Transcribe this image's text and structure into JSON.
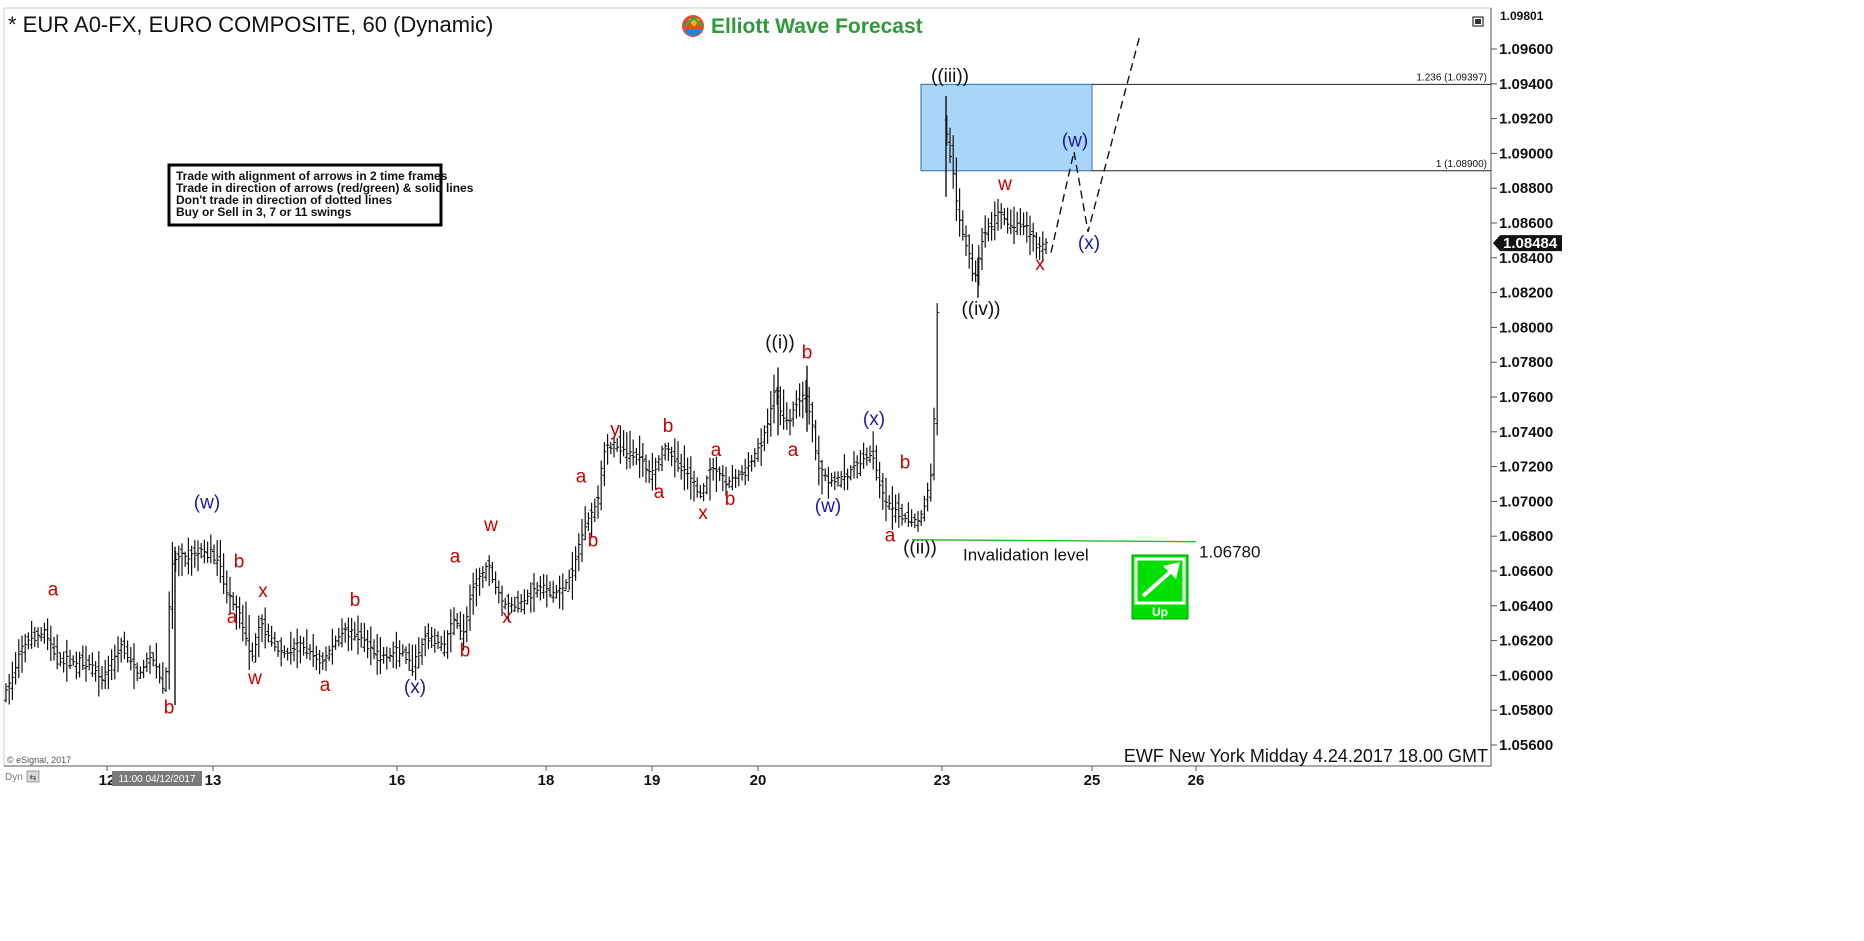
{
  "chart_data": {
    "type": "ohlc",
    "title": "* EUR A0-FX, EURO COMPOSITE, 60 (Dynamic)",
    "brand": "Elliott Wave Forecast",
    "footer": "EWF New York Midday 4.24.2017 18.00 GMT",
    "copyright": "© eSignal, 2017",
    "dyn_label": "Dyn",
    "cursor_date": "11:00 04/12/2017",
    "ylim": [
      1.0555,
      1.09801
    ],
    "y_ticks": [
      "1.05600",
      "1.05800",
      "1.06000",
      "1.06200",
      "1.06400",
      "1.06600",
      "1.06800",
      "1.07000",
      "1.07200",
      "1.07400",
      "1.07600",
      "1.07800",
      "1.08000",
      "1.08200",
      "1.08400",
      "1.08600",
      "1.08800",
      "1.09000",
      "1.09200",
      "1.09400",
      "1.09600"
    ],
    "top_price_label": "1.09801",
    "last_price": "1.08484",
    "x_ticks": [
      "12",
      "13",
      "16",
      "18",
      "19",
      "20",
      "23",
      "25",
      "26"
    ],
    "info_box": [
      "Trade with alignment of arrows in 2 time frames",
      "Trade in direction of arrows (red/green) & solid lines",
      "Don't trade in direction of dotted lines",
      "Buy or Sell in 3, 7 or 11 swings"
    ],
    "fib_levels": [
      {
        "label": "1.236 (1.09397)",
        "value": 1.09397
      },
      {
        "label": "1 (1.08900)",
        "value": 1.089
      }
    ],
    "invalidation": {
      "label": "Invalidation level",
      "value": "1.06780",
      "price": 1.0678
    },
    "signal": {
      "label": "Up",
      "color": "#00e000"
    },
    "colors": {
      "red": "#cc0000",
      "blue": "#1a1aa8",
      "black": "#111111",
      "box": "#a9d6f8",
      "green_line": "#22bb22"
    },
    "wave_labels": [
      {
        "t": "a",
        "px": 53,
        "price": 1.0646,
        "color": "red"
      },
      {
        "t": "b",
        "px": 169,
        "price": 1.0578,
        "color": "red"
      },
      {
        "t": "(w)",
        "px": 207,
        "price": 1.0696,
        "color": "blue"
      },
      {
        "t": "b",
        "px": 239,
        "price": 1.0662,
        "color": "red"
      },
      {
        "t": "a",
        "px": 232,
        "price": 1.063,
        "color": "red"
      },
      {
        "t": "x",
        "px": 263,
        "price": 1.0645,
        "color": "red"
      },
      {
        "t": "w",
        "px": 255,
        "price": 1.0595,
        "color": "red"
      },
      {
        "t": "a",
        "px": 325,
        "price": 1.0591,
        "color": "red"
      },
      {
        "t": "b",
        "px": 355,
        "price": 1.064,
        "color": "red"
      },
      {
        "t": "(x)",
        "px": 415,
        "price": 1.059,
        "color": "blue"
      },
      {
        "t": "a",
        "px": 455,
        "price": 1.0665,
        "color": "red"
      },
      {
        "t": "b",
        "px": 465,
        "price": 1.0611,
        "color": "red"
      },
      {
        "t": "w",
        "px": 491,
        "price": 1.0683,
        "color": "red"
      },
      {
        "t": "x",
        "px": 507,
        "price": 1.063,
        "color": "red"
      },
      {
        "t": "a",
        "px": 581,
        "price": 1.0711,
        "color": "red"
      },
      {
        "t": "b",
        "px": 593,
        "price": 1.0674,
        "color": "red"
      },
      {
        "t": "y",
        "px": 615,
        "price": 1.0738,
        "color": "red"
      },
      {
        "t": "a",
        "px": 659,
        "price": 1.0702,
        "color": "red"
      },
      {
        "t": "b",
        "px": 668,
        "price": 1.074,
        "color": "red"
      },
      {
        "t": "x",
        "px": 703,
        "price": 1.069,
        "color": "red"
      },
      {
        "t": "a",
        "px": 716,
        "price": 1.0726,
        "color": "red"
      },
      {
        "t": "b",
        "px": 730,
        "price": 1.0698,
        "color": "red"
      },
      {
        "t": "((i))",
        "px": 780,
        "price": 1.0788,
        "color": "black"
      },
      {
        "t": "b",
        "px": 807,
        "price": 1.0782,
        "color": "red"
      },
      {
        "t": "a",
        "px": 793,
        "price": 1.0726,
        "color": "red"
      },
      {
        "t": "(x)",
        "px": 874,
        "price": 1.0744,
        "color": "blue"
      },
      {
        "t": "b",
        "px": 905,
        "price": 1.0719,
        "color": "red"
      },
      {
        "t": "(w)",
        "px": 828,
        "price": 1.0694,
        "color": "blue"
      },
      {
        "t": "a",
        "px": 890,
        "price": 1.0677,
        "color": "red"
      },
      {
        "t": "((ii))",
        "px": 920,
        "price": 1.067,
        "color": "black"
      },
      {
        "t": "((iii))",
        "px": 950,
        "price": 1.0941,
        "color": "black"
      },
      {
        "t": "w",
        "px": 1005,
        "price": 1.0879,
        "color": "red"
      },
      {
        "t": "(w)",
        "px": 1075,
        "price": 1.0904,
        "color": "blue"
      },
      {
        "t": "(x)",
        "px": 1089,
        "price": 1.0845,
        "color": "blue"
      },
      {
        "t": "x",
        "px": 1040,
        "price": 1.0833,
        "color": "red"
      },
      {
        "t": "((iv))",
        "px": 981,
        "price": 1.0807,
        "color": "black"
      }
    ]
  }
}
